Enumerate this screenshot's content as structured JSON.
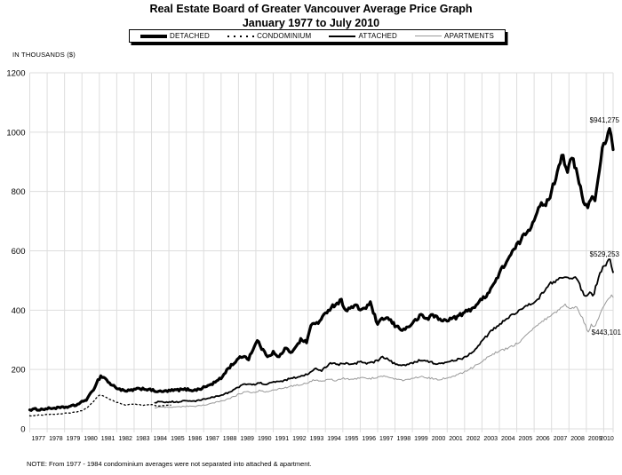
{
  "title": "Real Estate Board of Greater Vancouver Average Price Graph",
  "subtitle": "January 1977 to July 2010",
  "y_axis_label": "IN THOUSANDS ($)",
  "note": "NOTE:  From 1977 - 1984 condominium averages were not separated into attached & apartment.",
  "legend": [
    {
      "label": "DETACHED",
      "style": "thick-solid",
      "color": "#000000"
    },
    {
      "label": "CONDOMINIUM",
      "style": "dotted",
      "color": "#000000"
    },
    {
      "label": "ATTACHED",
      "style": "solid",
      "color": "#000000"
    },
    {
      "label": "APARTMENTS",
      "style": "thin-solid",
      "color": "#999999"
    }
  ],
  "annotations": [
    {
      "label": "$941,275",
      "series": "DETACHED",
      "value_thousands": 941.275
    },
    {
      "label": "$529,253",
      "series": "ATTACHED",
      "value_thousands": 529.253
    },
    {
      "label": "$443,101",
      "series": "APARTMENTS",
      "value_thousands": 443.101
    }
  ],
  "chart_data": {
    "type": "line",
    "title": "Real Estate Board of Greater Vancouver Average Price Graph",
    "subtitle": "January 1977 to July 2010",
    "ylabel": "IN THOUSANDS ($)",
    "xlabel": "",
    "grid": true,
    "legend_position": "top",
    "x_range": [
      1977,
      2010.54
    ],
    "ylim": [
      0,
      1200
    ],
    "y_ticks": [
      0,
      200,
      400,
      600,
      800,
      1000,
      1200
    ],
    "x_ticks": [
      1977,
      1978,
      1979,
      1980,
      1981,
      1982,
      1983,
      1984,
      1985,
      1986,
      1987,
      1988,
      1989,
      1990,
      1991,
      1992,
      1993,
      1994,
      1995,
      1996,
      1997,
      1998,
      1999,
      2000,
      2001,
      2002,
      2003,
      2004,
      2005,
      2006,
      2007,
      2008,
      2009,
      2010
    ],
    "grid_color": "#dddddd",
    "series": [
      {
        "name": "DETACHED",
        "color": "#000000",
        "width": 3.2,
        "dash": "",
        "final_label": "$941,275",
        "points": [
          [
            1977.0,
            64
          ],
          [
            1977.3,
            66
          ],
          [
            1977.6,
            65
          ],
          [
            1978.0,
            68
          ],
          [
            1978.4,
            70
          ],
          [
            1978.8,
            71
          ],
          [
            1979.2,
            74
          ],
          [
            1979.6,
            79
          ],
          [
            1980.0,
            90
          ],
          [
            1980.3,
            101
          ],
          [
            1980.6,
            126
          ],
          [
            1980.9,
            162
          ],
          [
            1981.1,
            178
          ],
          [
            1981.35,
            170
          ],
          [
            1981.6,
            152
          ],
          [
            1982.0,
            138
          ],
          [
            1982.5,
            126
          ],
          [
            1983.0,
            132
          ],
          [
            1983.5,
            136
          ],
          [
            1984.0,
            130
          ],
          [
            1984.5,
            125
          ],
          [
            1985.0,
            128
          ],
          [
            1985.5,
            131
          ],
          [
            1986.0,
            133
          ],
          [
            1986.5,
            130
          ],
          [
            1987.0,
            139
          ],
          [
            1987.5,
            152
          ],
          [
            1988.0,
            170
          ],
          [
            1988.3,
            196
          ],
          [
            1988.6,
            215
          ],
          [
            1989.0,
            235
          ],
          [
            1989.3,
            248
          ],
          [
            1989.55,
            233
          ],
          [
            1989.8,
            265
          ],
          [
            1990.1,
            298
          ],
          [
            1990.4,
            264
          ],
          [
            1990.7,
            245
          ],
          [
            1991.0,
            258
          ],
          [
            1991.3,
            239
          ],
          [
            1991.7,
            273
          ],
          [
            1992.0,
            254
          ],
          [
            1992.3,
            280
          ],
          [
            1992.6,
            301
          ],
          [
            1992.9,
            291
          ],
          [
            1993.0,
            312
          ],
          [
            1993.2,
            352
          ],
          [
            1993.7,
            362
          ],
          [
            1994.1,
            398
          ],
          [
            1994.4,
            413
          ],
          [
            1994.9,
            433
          ],
          [
            1995.2,
            398
          ],
          [
            1995.7,
            416
          ],
          [
            1996.0,
            402
          ],
          [
            1996.3,
            408
          ],
          [
            1996.6,
            423
          ],
          [
            1997.0,
            349
          ],
          [
            1997.3,
            373
          ],
          [
            1997.6,
            372
          ],
          [
            1998.0,
            348
          ],
          [
            1998.5,
            333
          ],
          [
            1999.0,
            355
          ],
          [
            1999.5,
            383
          ],
          [
            1999.9,
            368
          ],
          [
            2000.1,
            388
          ],
          [
            2000.7,
            363
          ],
          [
            2001.1,
            370
          ],
          [
            2001.4,
            373
          ],
          [
            2001.9,
            388
          ],
          [
            2002.4,
            405
          ],
          [
            2002.87,
            428
          ],
          [
            2003.3,
            455
          ],
          [
            2003.7,
            490
          ],
          [
            2004.23,
            548
          ],
          [
            2004.9,
            608
          ],
          [
            2005.4,
            650
          ],
          [
            2005.9,
            690
          ],
          [
            2006.3,
            760
          ],
          [
            2006.6,
            745
          ],
          [
            2007.0,
            800
          ],
          [
            2007.3,
            860
          ],
          [
            2007.6,
            930
          ],
          [
            2007.9,
            870
          ],
          [
            2008.2,
            915
          ],
          [
            2008.5,
            850
          ],
          [
            2008.9,
            752
          ],
          [
            2009.1,
            748
          ],
          [
            2009.3,
            790
          ],
          [
            2009.5,
            765
          ],
          [
            2009.7,
            860
          ],
          [
            2009.9,
            940
          ],
          [
            2010.1,
            965
          ],
          [
            2010.35,
            1005
          ],
          [
            2010.54,
            941.275
          ]
        ]
      },
      {
        "name": "CONDOMINIUM",
        "color": "#000000",
        "width": 1.3,
        "dash": "1.5 3",
        "final_label": "",
        "points": [
          [
            1977.0,
            44
          ],
          [
            1977.4,
            46
          ],
          [
            1977.8,
            47
          ],
          [
            1978.2,
            49
          ],
          [
            1978.6,
            50
          ],
          [
            1979.0,
            52
          ],
          [
            1979.5,
            55
          ],
          [
            1980.0,
            62
          ],
          [
            1980.3,
            70
          ],
          [
            1980.6,
            88
          ],
          [
            1980.9,
            108
          ],
          [
            1981.05,
            115
          ],
          [
            1981.3,
            108
          ],
          [
            1981.6,
            100
          ],
          [
            1982.0,
            90
          ],
          [
            1982.5,
            80
          ],
          [
            1983.0,
            84
          ],
          [
            1983.5,
            79
          ],
          [
            1984.0,
            81
          ],
          [
            1984.4,
            77
          ],
          [
            1984.8,
            79
          ],
          [
            1985.1,
            80
          ]
        ]
      },
      {
        "name": "ATTACHED",
        "color": "#000000",
        "width": 1.8,
        "dash": "",
        "final_label": "$529,253",
        "points": [
          [
            1984.2,
            88
          ],
          [
            1984.5,
            93
          ],
          [
            1984.8,
            90
          ],
          [
            1985.1,
            92
          ],
          [
            1985.5,
            90
          ],
          [
            1986.0,
            95
          ],
          [
            1986.5,
            93
          ],
          [
            1987.0,
            99
          ],
          [
            1987.5,
            106
          ],
          [
            1988.0,
            114
          ],
          [
            1988.5,
            124
          ],
          [
            1989.0,
            140
          ],
          [
            1989.4,
            152
          ],
          [
            1989.8,
            147
          ],
          [
            1990.2,
            155
          ],
          [
            1990.6,
            150
          ],
          [
            1991.0,
            157
          ],
          [
            1991.5,
            161
          ],
          [
            1992.0,
            170
          ],
          [
            1992.5,
            176
          ],
          [
            1993.0,
            186
          ],
          [
            1993.4,
            202
          ],
          [
            1993.8,
            197
          ],
          [
            1994.3,
            224
          ],
          [
            1994.7,
            215
          ],
          [
            1995.1,
            222
          ],
          [
            1995.5,
            215
          ],
          [
            1996.0,
            226
          ],
          [
            1996.5,
            220
          ],
          [
            1997.0,
            230
          ],
          [
            1997.3,
            243
          ],
          [
            1997.7,
            230
          ],
          [
            1998.0,
            218
          ],
          [
            1998.5,
            212
          ],
          [
            1999.0,
            222
          ],
          [
            1999.5,
            233
          ],
          [
            2000.0,
            225
          ],
          [
            2000.5,
            218
          ],
          [
            2001.0,
            224
          ],
          [
            2001.5,
            232
          ],
          [
            2002.0,
            240
          ],
          [
            2002.5,
            262
          ],
          [
            2003.0,
            295
          ],
          [
            2003.5,
            328
          ],
          [
            2004.0,
            352
          ],
          [
            2004.6,
            378
          ],
          [
            2005.1,
            398
          ],
          [
            2005.6,
            415
          ],
          [
            2006.1,
            428
          ],
          [
            2006.5,
            460
          ],
          [
            2006.9,
            488
          ],
          [
            2007.3,
            500
          ],
          [
            2007.8,
            513
          ],
          [
            2008.1,
            505
          ],
          [
            2008.4,
            515
          ],
          [
            2008.7,
            472
          ],
          [
            2009.0,
            442
          ],
          [
            2009.2,
            460
          ],
          [
            2009.4,
            448
          ],
          [
            2009.6,
            490
          ],
          [
            2009.8,
            530
          ],
          [
            2010.0,
            545
          ],
          [
            2010.2,
            560
          ],
          [
            2010.35,
            570
          ],
          [
            2010.54,
            529.253
          ]
        ]
      },
      {
        "name": "APARTMENTS",
        "color": "#999999",
        "width": 1.0,
        "dash": "",
        "final_label": "$443,101",
        "points": [
          [
            1984.2,
            70
          ],
          [
            1984.6,
            74
          ],
          [
            1985.0,
            72
          ],
          [
            1985.5,
            74
          ],
          [
            1986.0,
            76
          ],
          [
            1986.5,
            75
          ],
          [
            1987.0,
            80
          ],
          [
            1987.5,
            86
          ],
          [
            1988.0,
            93
          ],
          [
            1988.5,
            102
          ],
          [
            1989.0,
            116
          ],
          [
            1989.4,
            126
          ],
          [
            1989.8,
            121
          ],
          [
            1990.2,
            129
          ],
          [
            1990.6,
            124
          ],
          [
            1991.0,
            131
          ],
          [
            1991.5,
            136
          ],
          [
            1992.0,
            143
          ],
          [
            1992.5,
            149
          ],
          [
            1993.0,
            156
          ],
          [
            1993.4,
            166
          ],
          [
            1993.8,
            161
          ],
          [
            1994.2,
            168
          ],
          [
            1994.6,
            163
          ],
          [
            1995.0,
            170
          ],
          [
            1995.5,
            165
          ],
          [
            1996.0,
            172
          ],
          [
            1996.5,
            168
          ],
          [
            1997.0,
            175
          ],
          [
            1997.5,
            178
          ],
          [
            1998.0,
            168
          ],
          [
            1998.5,
            162
          ],
          [
            1999.0,
            170
          ],
          [
            1999.5,
            176
          ],
          [
            2000.0,
            171
          ],
          [
            2000.5,
            166
          ],
          [
            2001.0,
            172
          ],
          [
            2001.5,
            180
          ],
          [
            2002.0,
            192
          ],
          [
            2002.5,
            208
          ],
          [
            2003.0,
            228
          ],
          [
            2003.5,
            248
          ],
          [
            2004.0,
            262
          ],
          [
            2004.5,
            272
          ],
          [
            2005.1,
            290
          ],
          [
            2005.6,
            320
          ],
          [
            2006.1,
            345
          ],
          [
            2006.5,
            362
          ],
          [
            2006.9,
            380
          ],
          [
            2007.3,
            395
          ],
          [
            2007.8,
            418
          ],
          [
            2008.1,
            405
          ],
          [
            2008.4,
            412
          ],
          [
            2008.8,
            372
          ],
          [
            2009.1,
            325
          ],
          [
            2009.3,
            352
          ],
          [
            2009.5,
            340
          ],
          [
            2009.7,
            375
          ],
          [
            2009.9,
            405
          ],
          [
            2010.1,
            420
          ],
          [
            2010.3,
            440
          ],
          [
            2010.45,
            452
          ],
          [
            2010.54,
            443.101
          ]
        ]
      }
    ]
  }
}
